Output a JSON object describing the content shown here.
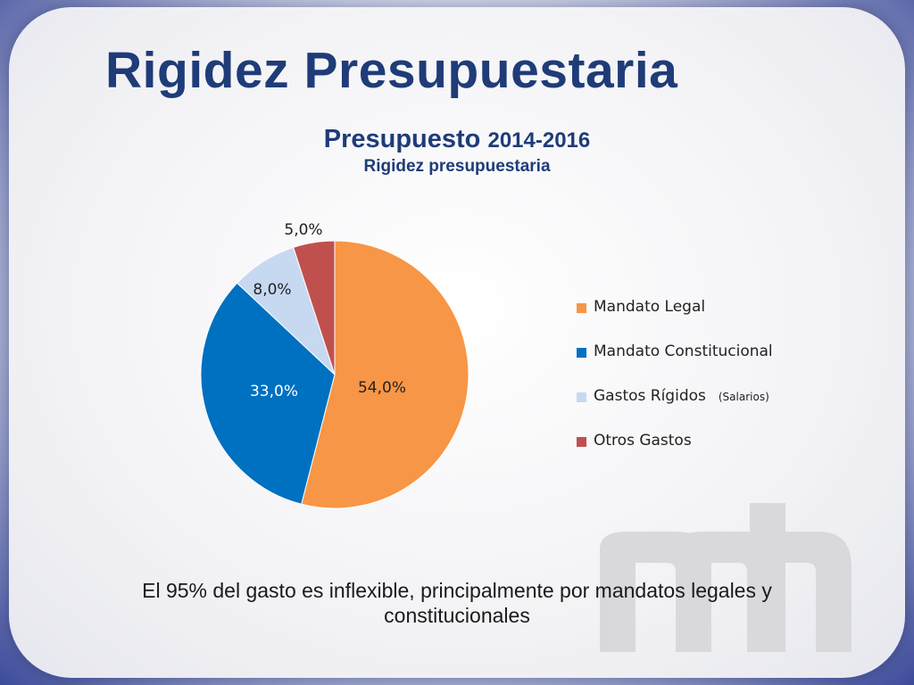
{
  "slide": {
    "title": "Rigidez Presupuestaria",
    "note": "El 95% del gasto es inflexible, principalmente por mandatos legales y constitucionales"
  },
  "chart_data": {
    "type": "pie",
    "title_main": "Presupuesto",
    "title_years": "2014-2016",
    "subtitle": "Rigidez presupuestaria",
    "slices": [
      {
        "name": "Mandato Legal",
        "value": 54.0,
        "label": "54,0%",
        "color": "#f79646"
      },
      {
        "name": "Mandato Constitucional",
        "value": 33.0,
        "label": "33,0%",
        "color": "#0070c0"
      },
      {
        "name": "Gastos Rígidos",
        "value": 8.0,
        "label": "8,0%",
        "color": "#c6d9f1",
        "note": "(Salarios)"
      },
      {
        "name": "Otros Gastos",
        "value": 5.0,
        "label": "5,0%",
        "color": "#c0504d"
      }
    ],
    "legend_position": "right"
  }
}
